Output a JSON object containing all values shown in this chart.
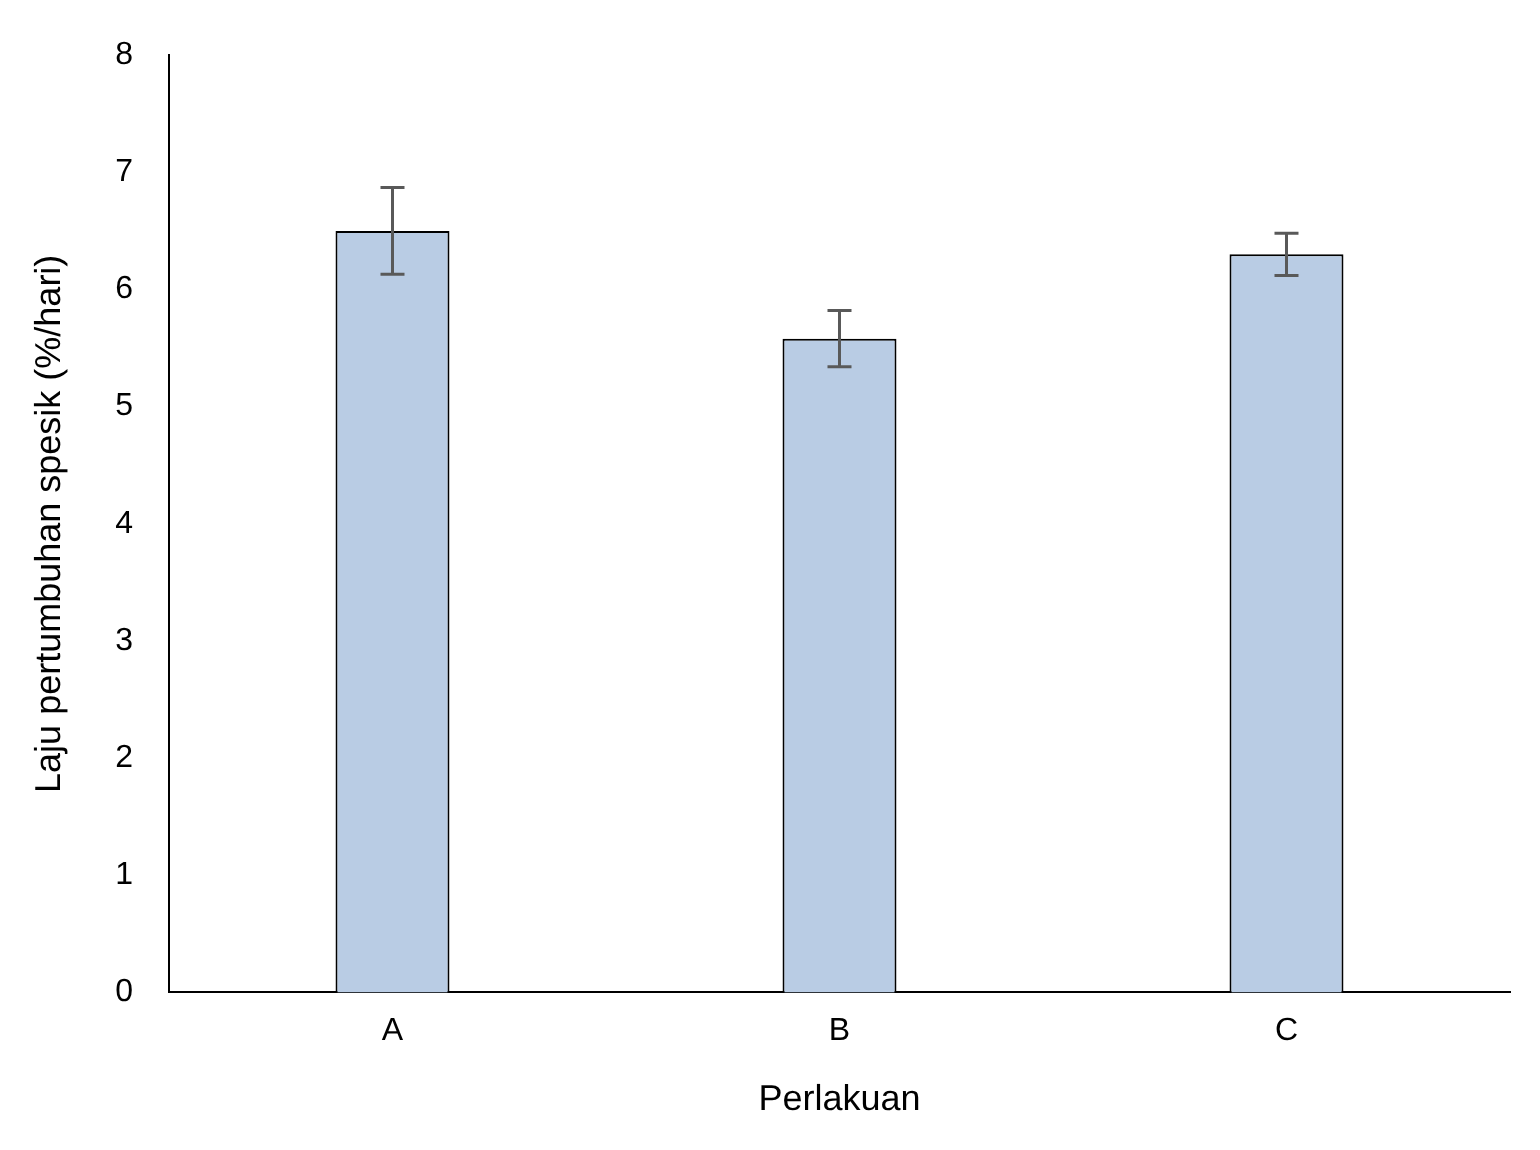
{
  "chart_data": {
    "type": "bar",
    "xlabel": "Perlakuan",
    "ylabel": "Laju pertumbuhan spesik (%/hari)",
    "categories": [
      "A",
      "B",
      "C"
    ],
    "values": [
      6.5,
      5.58,
      6.3
    ],
    "errors": [
      0.37,
      0.24,
      0.18
    ],
    "color": "#b9cce4",
    "ylim": [
      0,
      8
    ],
    "yticks": [
      0,
      1,
      2,
      3,
      4,
      5,
      6,
      7,
      8
    ],
    "grid": false,
    "legend": false
  }
}
